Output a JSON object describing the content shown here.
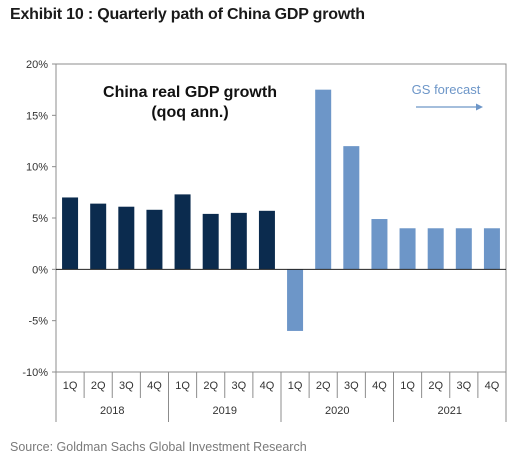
{
  "exhibit_title": "Exhibit 10 : Quarterly path of China GDP growth",
  "source": "Source: Goldman Sachs Global Investment Research",
  "chart_data": {
    "type": "bar",
    "title": "China real GDP growth",
    "subtitle": "(qoq ann.)",
    "categories": [
      "1Q",
      "2Q",
      "3Q",
      "4Q",
      "1Q",
      "2Q",
      "3Q",
      "4Q",
      "1Q",
      "2Q",
      "3Q",
      "4Q",
      "1Q",
      "2Q",
      "3Q",
      "4Q"
    ],
    "year_groups": [
      {
        "label": "2018",
        "count": 4
      },
      {
        "label": "2019",
        "count": 4
      },
      {
        "label": "2020",
        "count": 4
      },
      {
        "label": "2021",
        "count": 4
      }
    ],
    "values": [
      7.0,
      6.4,
      6.1,
      5.8,
      7.3,
      5.4,
      5.5,
      5.7,
      -6.0,
      17.5,
      12.0,
      4.9,
      4.0,
      4.0,
      4.0,
      4.0
    ],
    "forecast_start_index": 8,
    "annotation": "GS forecast",
    "ylim": [
      -10,
      20
    ],
    "yticks": [
      -10,
      -5,
      0,
      5,
      10,
      15,
      20
    ],
    "ytick_labels": [
      "-10%",
      "-5%",
      "0%",
      "5%",
      "10%",
      "15%",
      "20%"
    ],
    "grid": false,
    "colors": {
      "actual": "#0b2b4e",
      "forecast": "#6d96c8"
    }
  }
}
